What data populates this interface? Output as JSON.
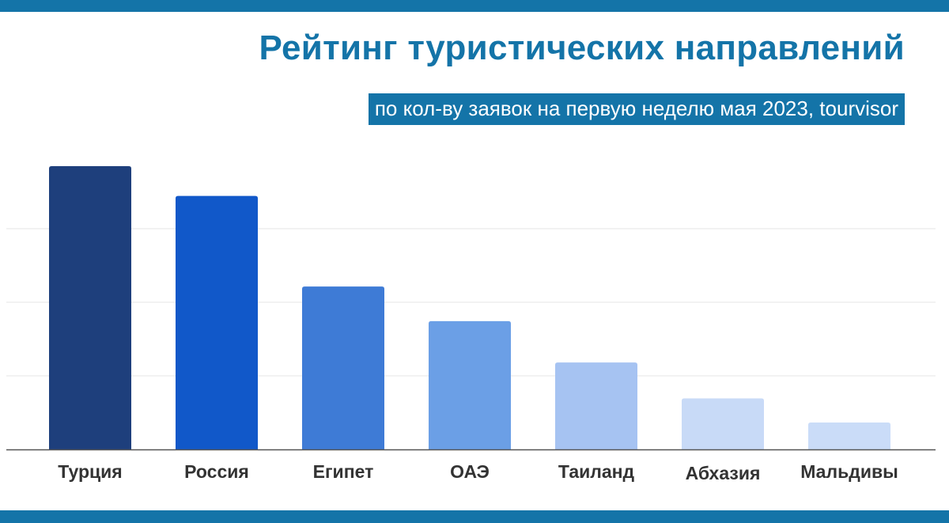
{
  "title": "Рейтинг туристических направлений",
  "subtitle": "по кол-ву заявок на первую неделю мая 2023, tourvisor",
  "colors": {
    "band": "#1474a8",
    "title": "#1474a8",
    "grid": "#e9e9e9",
    "axis": "#555555"
  },
  "chart_data": {
    "type": "bar",
    "categories": [
      "Турция",
      "Россия",
      "Египет",
      "ОАЭ",
      "Таиланд",
      "Абхазия",
      "Мальдивы"
    ],
    "values": [
      100,
      89.5,
      57.5,
      45.3,
      30.7,
      18.0,
      9.5
    ],
    "colors": [
      "#1e3f7c",
      "#1158c9",
      "#3e7bd6",
      "#6b9fe6",
      "#a6c3f2",
      "#c8daf7",
      "#cadcf8"
    ],
    "ylim": [
      0,
      100
    ],
    "grid": true,
    "legend": "none",
    "xlabel": "",
    "ylabel": ""
  }
}
